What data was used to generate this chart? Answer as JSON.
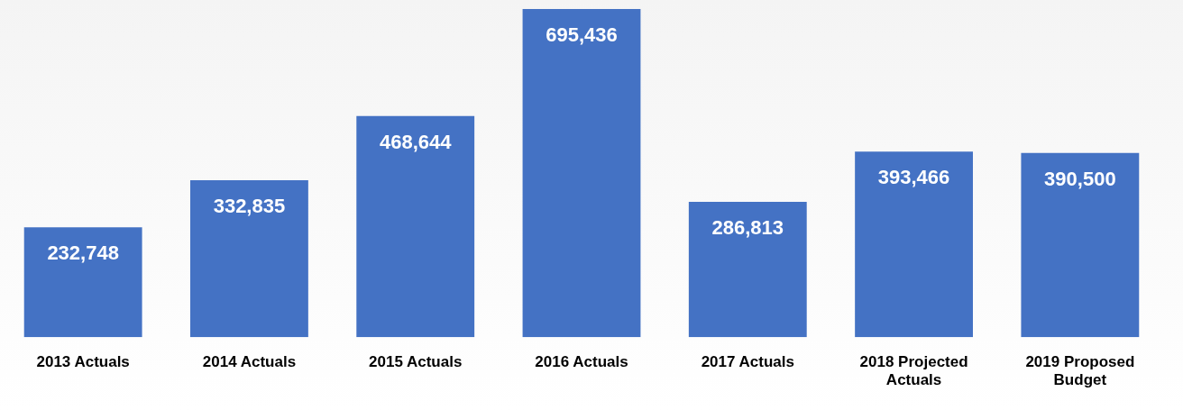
{
  "chart_data": {
    "type": "bar",
    "categories": [
      "2013 Actuals",
      "2014 Actuals",
      "2015 Actuals",
      "2016 Actuals",
      "2017 Actuals",
      "2018 Projected Actuals",
      "2019 Proposed Budget"
    ],
    "values": [
      232748,
      332835,
      468644,
      695436,
      286813,
      393466,
      390500
    ],
    "value_labels": [
      "232,748",
      "332,835",
      "468,644",
      "695,436",
      "286,813",
      "393,466",
      "390,500"
    ],
    "color": "#4472c4",
    "grid": false,
    "legend": false
  }
}
